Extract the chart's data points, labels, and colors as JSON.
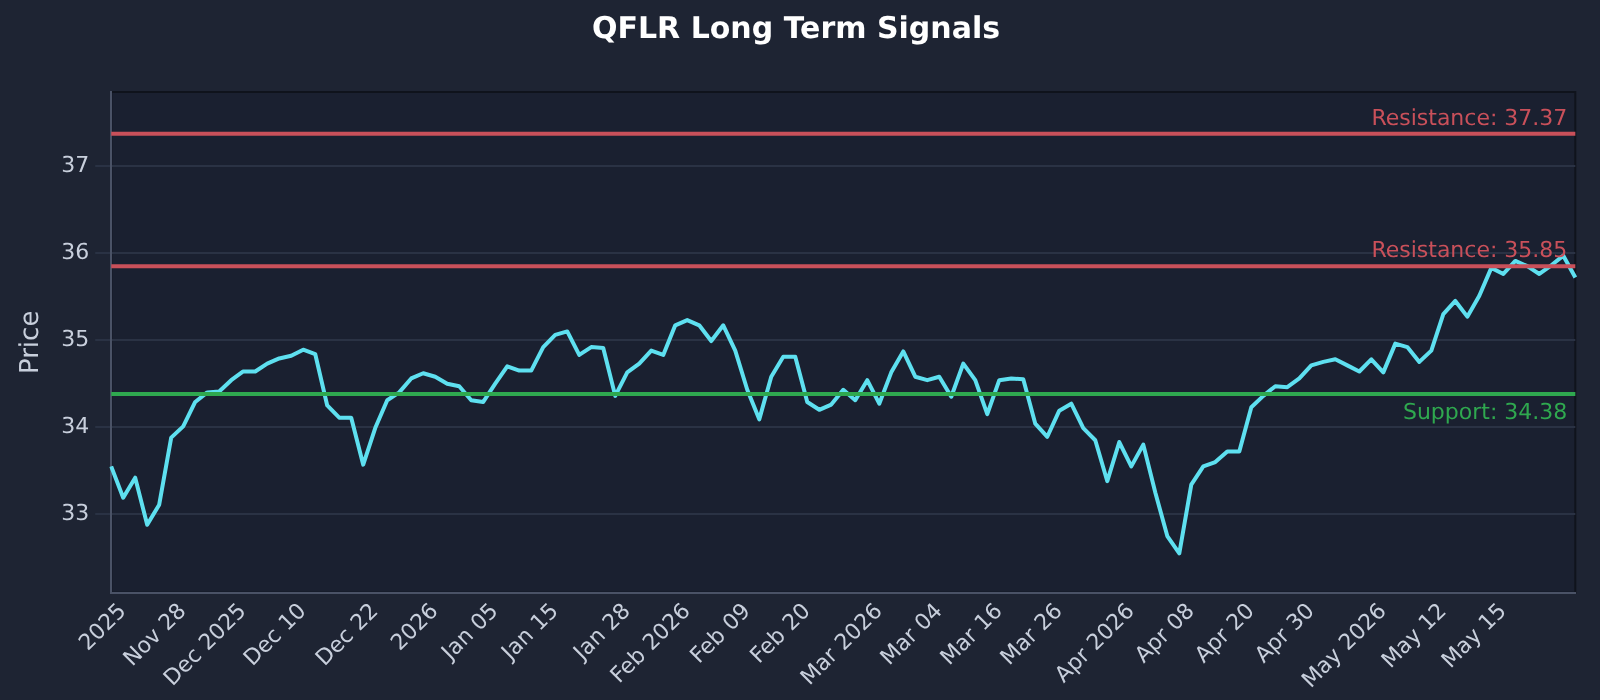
{
  "chart_data": {
    "type": "line",
    "title": "QFLR Long Term Signals",
    "ylabel": "Price",
    "categories": [
      null,
      "2025",
      null,
      null,
      null,
      null,
      "Nov 28",
      null,
      null,
      null,
      null,
      "Dec 2025",
      null,
      null,
      null,
      null,
      "Dec 10",
      null,
      null,
      null,
      null,
      null,
      "Dec 22",
      null,
      null,
      null,
      null,
      "2026",
      null,
      null,
      null,
      null,
      "Jan 05",
      null,
      null,
      null,
      null,
      "Jan 15",
      null,
      null,
      null,
      null,
      null,
      "Jan 28",
      null,
      null,
      null,
      null,
      "Feb 2026",
      null,
      null,
      null,
      null,
      "Feb 09",
      null,
      null,
      null,
      null,
      "Feb 20",
      null,
      null,
      null,
      null,
      null,
      "Mar 2026",
      null,
      null,
      null,
      null,
      "Mar 04",
      null,
      null,
      null,
      null,
      "Mar 16",
      null,
      null,
      null,
      null,
      "Mar 26",
      null,
      null,
      null,
      null,
      null,
      "Apr 2026",
      null,
      null,
      null,
      null,
      "Apr 08",
      null,
      null,
      null,
      null,
      "Apr 20",
      null,
      null,
      null,
      null,
      "Apr 30",
      null,
      null,
      null,
      null,
      null,
      "May 2026",
      null,
      null,
      null,
      null,
      "May 12",
      null,
      null,
      null,
      null,
      "May 15",
      null,
      null,
      null,
      null,
      null,
      null
    ],
    "series": [
      {
        "color": "#5ee0f0",
        "values": [
          33.55,
          33.19,
          33.42,
          32.88,
          33.11,
          33.88,
          34.01,
          34.29,
          34.4,
          34.41,
          34.54,
          34.64,
          34.64,
          34.73,
          34.79,
          34.82,
          34.89,
          34.84,
          34.25,
          34.11,
          34.11,
          33.57,
          33.99,
          34.31,
          34.4,
          34.56,
          34.62,
          34.58,
          34.5,
          34.47,
          34.31,
          34.29,
          34.5,
          34.7,
          34.65,
          34.65,
          34.92,
          35.06,
          35.1,
          34.83,
          34.92,
          34.91,
          34.36,
          34.63,
          34.73,
          34.88,
          34.83,
          35.17,
          35.23,
          35.17,
          34.99,
          35.17,
          34.88,
          34.43,
          34.09,
          34.58,
          34.81,
          34.81,
          34.29,
          34.2,
          34.26,
          34.43,
          34.31,
          34.54,
          34.27,
          34.63,
          34.87,
          34.58,
          34.54,
          34.58,
          34.35,
          34.73,
          34.54,
          34.15,
          34.54,
          34.56,
          34.55,
          34.04,
          33.89,
          34.19,
          34.27,
          33.99,
          33.85,
          33.38,
          33.83,
          33.55,
          33.8,
          33.25,
          32.75,
          32.55,
          33.34,
          33.55,
          33.6,
          33.72,
          33.72,
          34.23,
          34.36,
          34.47,
          34.46,
          34.56,
          34.71,
          34.75,
          34.78,
          34.71,
          34.64,
          34.78,
          34.63,
          34.96,
          34.92,
          34.75,
          34.88,
          35.3,
          35.45,
          35.27,
          35.51,
          35.83,
          35.76,
          35.91,
          35.85,
          35.76,
          35.86,
          35.97,
          35.72
        ]
      }
    ],
    "ylim": [
      32.1,
      37.85
    ],
    "yticks": [
      33,
      34,
      35,
      36,
      37
    ],
    "ref_lines": [
      {
        "axis": "y",
        "value": 37.37,
        "label": "Resistance: 37.37",
        "color": "#c9505a"
      },
      {
        "axis": "y",
        "value": 35.85,
        "label": "Resistance: 35.85",
        "color": "#c9505a"
      },
      {
        "axis": "y",
        "value": 34.38,
        "label": "Support: 34.38",
        "color": "#2fa84f"
      }
    ],
    "grid": "y",
    "legend": false,
    "marker": "none",
    "line_style": "solid"
  }
}
